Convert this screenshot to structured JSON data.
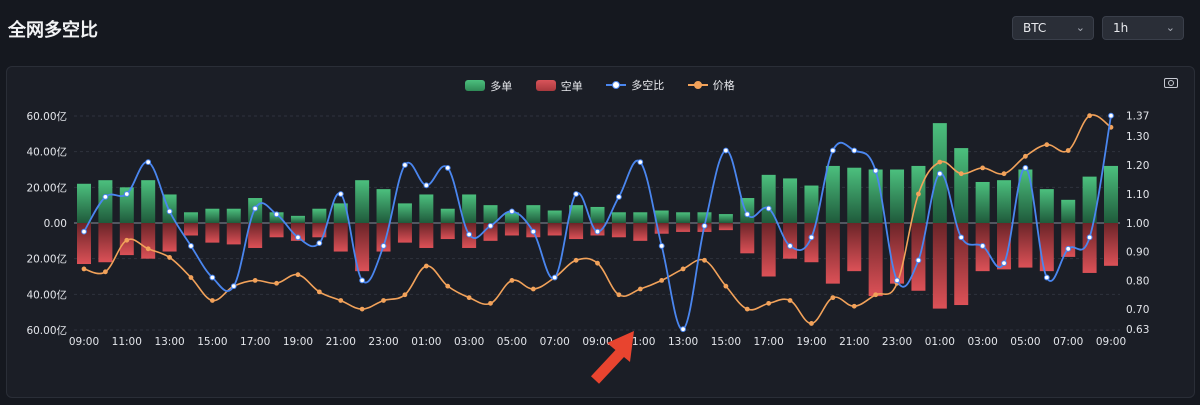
{
  "header": {
    "title": "全网多空比"
  },
  "controls": {
    "symbol": {
      "value": "BTC"
    },
    "interval": {
      "value": "1h"
    }
  },
  "icons": {
    "camera": "camera-icon",
    "chevron": "chevron-down-icon"
  },
  "chart_data": {
    "type": "bar",
    "title": "",
    "legend": {
      "position": "top-center",
      "entries": [
        "多单",
        "空单",
        "多空比",
        "价格"
      ]
    },
    "grid": true,
    "colors": {
      "long": "#3fa86a",
      "short": "#c94449",
      "ratio": "#4a86ef",
      "price": "#f2a25a"
    },
    "x_tick_labels": [
      "09:00",
      "11:00",
      "13:00",
      "15:00",
      "17:00",
      "19:00",
      "21:00",
      "23:00",
      "01:00",
      "03:00",
      "05:00",
      "07:00",
      "09:00",
      "11:00",
      "13:00",
      "15:00",
      "17:00",
      "19:00",
      "21:00",
      "23:00",
      "01:00",
      "03:00",
      "05:00",
      "07:00",
      "09:00"
    ],
    "y_left": {
      "range": [
        -60,
        60
      ],
      "tick_labels": [
        "60.00亿",
        "40.00亿",
        "20.00亿",
        "0.00",
        "20.00亿",
        "40.00亿",
        "60.00亿"
      ]
    },
    "y_right": {
      "tick_labels": [
        "1.37",
        "1.30",
        "1.20",
        "1.10",
        "1.00",
        "0.90",
        "0.80",
        "0.70",
        "0.63"
      ]
    },
    "series": [
      {
        "name": "多单",
        "type": "bar",
        "values": [
          22,
          24,
          20,
          24,
          16,
          6,
          8,
          8,
          14,
          6,
          4,
          8,
          11,
          24,
          19,
          11,
          16,
          8,
          16,
          10,
          6,
          10,
          7,
          10,
          9,
          6,
          6,
          7,
          6,
          6,
          5,
          14,
          27,
          25,
          21,
          32,
          31,
          30,
          30,
          32,
          56,
          42,
          23,
          24,
          30,
          19,
          13,
          26,
          32
        ]
      },
      {
        "name": "空单",
        "type": "bar",
        "values": [
          -23,
          -22,
          -18,
          -20,
          -16,
          -7,
          -11,
          -12,
          -14,
          -8,
          -10,
          -8,
          -16,
          -27,
          -16,
          -11,
          -14,
          -9,
          -14,
          -10,
          -7,
          -8,
          -7,
          -9,
          -7,
          -8,
          -10,
          -6,
          -5,
          -5,
          -4,
          -17,
          -30,
          -20,
          -22,
          -34,
          -27,
          -41,
          -34,
          -38,
          -48,
          -46,
          -27,
          -26,
          -25,
          -27,
          -19,
          -28,
          -24
        ]
      },
      {
        "name": "多空比",
        "type": "line",
        "values": [
          0.97,
          1.09,
          1.1,
          1.21,
          1.04,
          0.92,
          0.81,
          0.78,
          1.05,
          1.03,
          0.95,
          0.93,
          1.1,
          0.8,
          0.92,
          1.2,
          1.13,
          1.19,
          0.96,
          0.99,
          1.04,
          0.97,
          0.81,
          1.1,
          0.97,
          1.09,
          1.21,
          0.92,
          0.63,
          0.99,
          1.25,
          1.03,
          1.05,
          0.92,
          0.95,
          1.25,
          1.25,
          1.18,
          0.8,
          0.87,
          1.17,
          0.95,
          0.92,
          0.86,
          1.19,
          0.81,
          0.91,
          0.95,
          1.37
        ]
      },
      {
        "name": "价格",
        "type": "line",
        "values": [
          0.84,
          0.83,
          0.94,
          0.91,
          0.88,
          0.81,
          0.73,
          0.78,
          0.8,
          0.79,
          0.82,
          0.76,
          0.73,
          0.7,
          0.73,
          0.75,
          0.85,
          0.78,
          0.74,
          0.72,
          0.8,
          0.77,
          0.81,
          0.87,
          0.86,
          0.75,
          0.77,
          0.8,
          0.84,
          0.87,
          0.78,
          0.7,
          0.72,
          0.73,
          0.65,
          0.74,
          0.71,
          0.75,
          0.79,
          1.1,
          1.21,
          1.17,
          1.19,
          1.17,
          1.23,
          1.27,
          1.25,
          1.37,
          1.33
        ]
      }
    ]
  }
}
